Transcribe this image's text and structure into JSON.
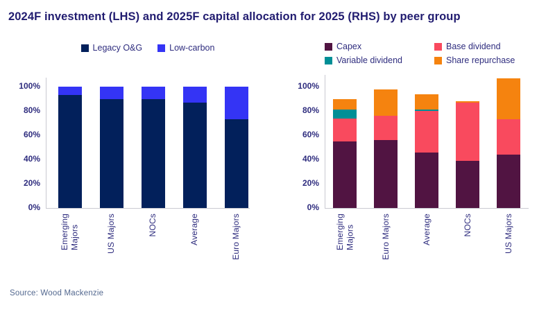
{
  "title": "2024F investment (LHS) and 2025F capital allocation for 2025 (RHS) by peer group",
  "source": "Source: Wood Mackenzie",
  "colors": {
    "title_text": "#211c70",
    "axis_text": "#2e2c7e",
    "axis_line": "#c9c9d1",
    "source_text": "#53688f",
    "legacy_og": "#02205b",
    "low_carbon": "#3434f5",
    "capex": "#511442",
    "base_dividend": "#f94a5e",
    "variable_dividend": "#008f96",
    "share_repurchase": "#f5830f"
  },
  "chart_data": [
    {
      "type": "bar",
      "stacked": true,
      "title": "2024F investment (LHS)",
      "categories": [
        "Emerging\nMajors",
        "US Majors",
        "NOCs",
        "Average",
        "Euro Majors"
      ],
      "series": [
        {
          "name": "Legacy O&G",
          "color": "#02205b",
          "values": [
            93,
            90,
            90,
            87,
            73
          ]
        },
        {
          "name": "Low-carbon",
          "color": "#3434f5",
          "values": [
            7,
            10,
            10,
            13,
            27
          ]
        }
      ],
      "xlabel": "",
      "ylabel": "",
      "ylim": [
        0,
        100
      ],
      "yticks": [
        "0%",
        "20%",
        "40%",
        "60%",
        "80%",
        "100%"
      ],
      "grid": false,
      "legend_position": "top-center-horizontal"
    },
    {
      "type": "bar",
      "stacked": true,
      "title": "2025F capital allocation for 2025 (RHS)",
      "categories": [
        "Emerging\nMajors",
        "Euro Majors",
        "Average",
        "NOCs",
        "US Majors"
      ],
      "series": [
        {
          "name": "Capex",
          "color": "#511442",
          "values": [
            55,
            56,
            46,
            39,
            44
          ]
        },
        {
          "name": "Base dividend",
          "color": "#f94a5e",
          "values": [
            19,
            20,
            34,
            48,
            29
          ]
        },
        {
          "name": "Variable dividend",
          "color": "#008f96",
          "values": [
            7,
            0,
            1,
            0,
            0
          ]
        },
        {
          "name": "Share repurchase",
          "color": "#f5830f",
          "values": [
            9,
            22,
            13,
            1,
            34
          ]
        }
      ],
      "xlabel": "",
      "ylabel": "",
      "ylim": [
        0,
        110
      ],
      "yticks": [
        "0%",
        "20%",
        "40%",
        "60%",
        "80%",
        "100%"
      ],
      "grid": false,
      "legend_position": "top-two-columns"
    }
  ]
}
